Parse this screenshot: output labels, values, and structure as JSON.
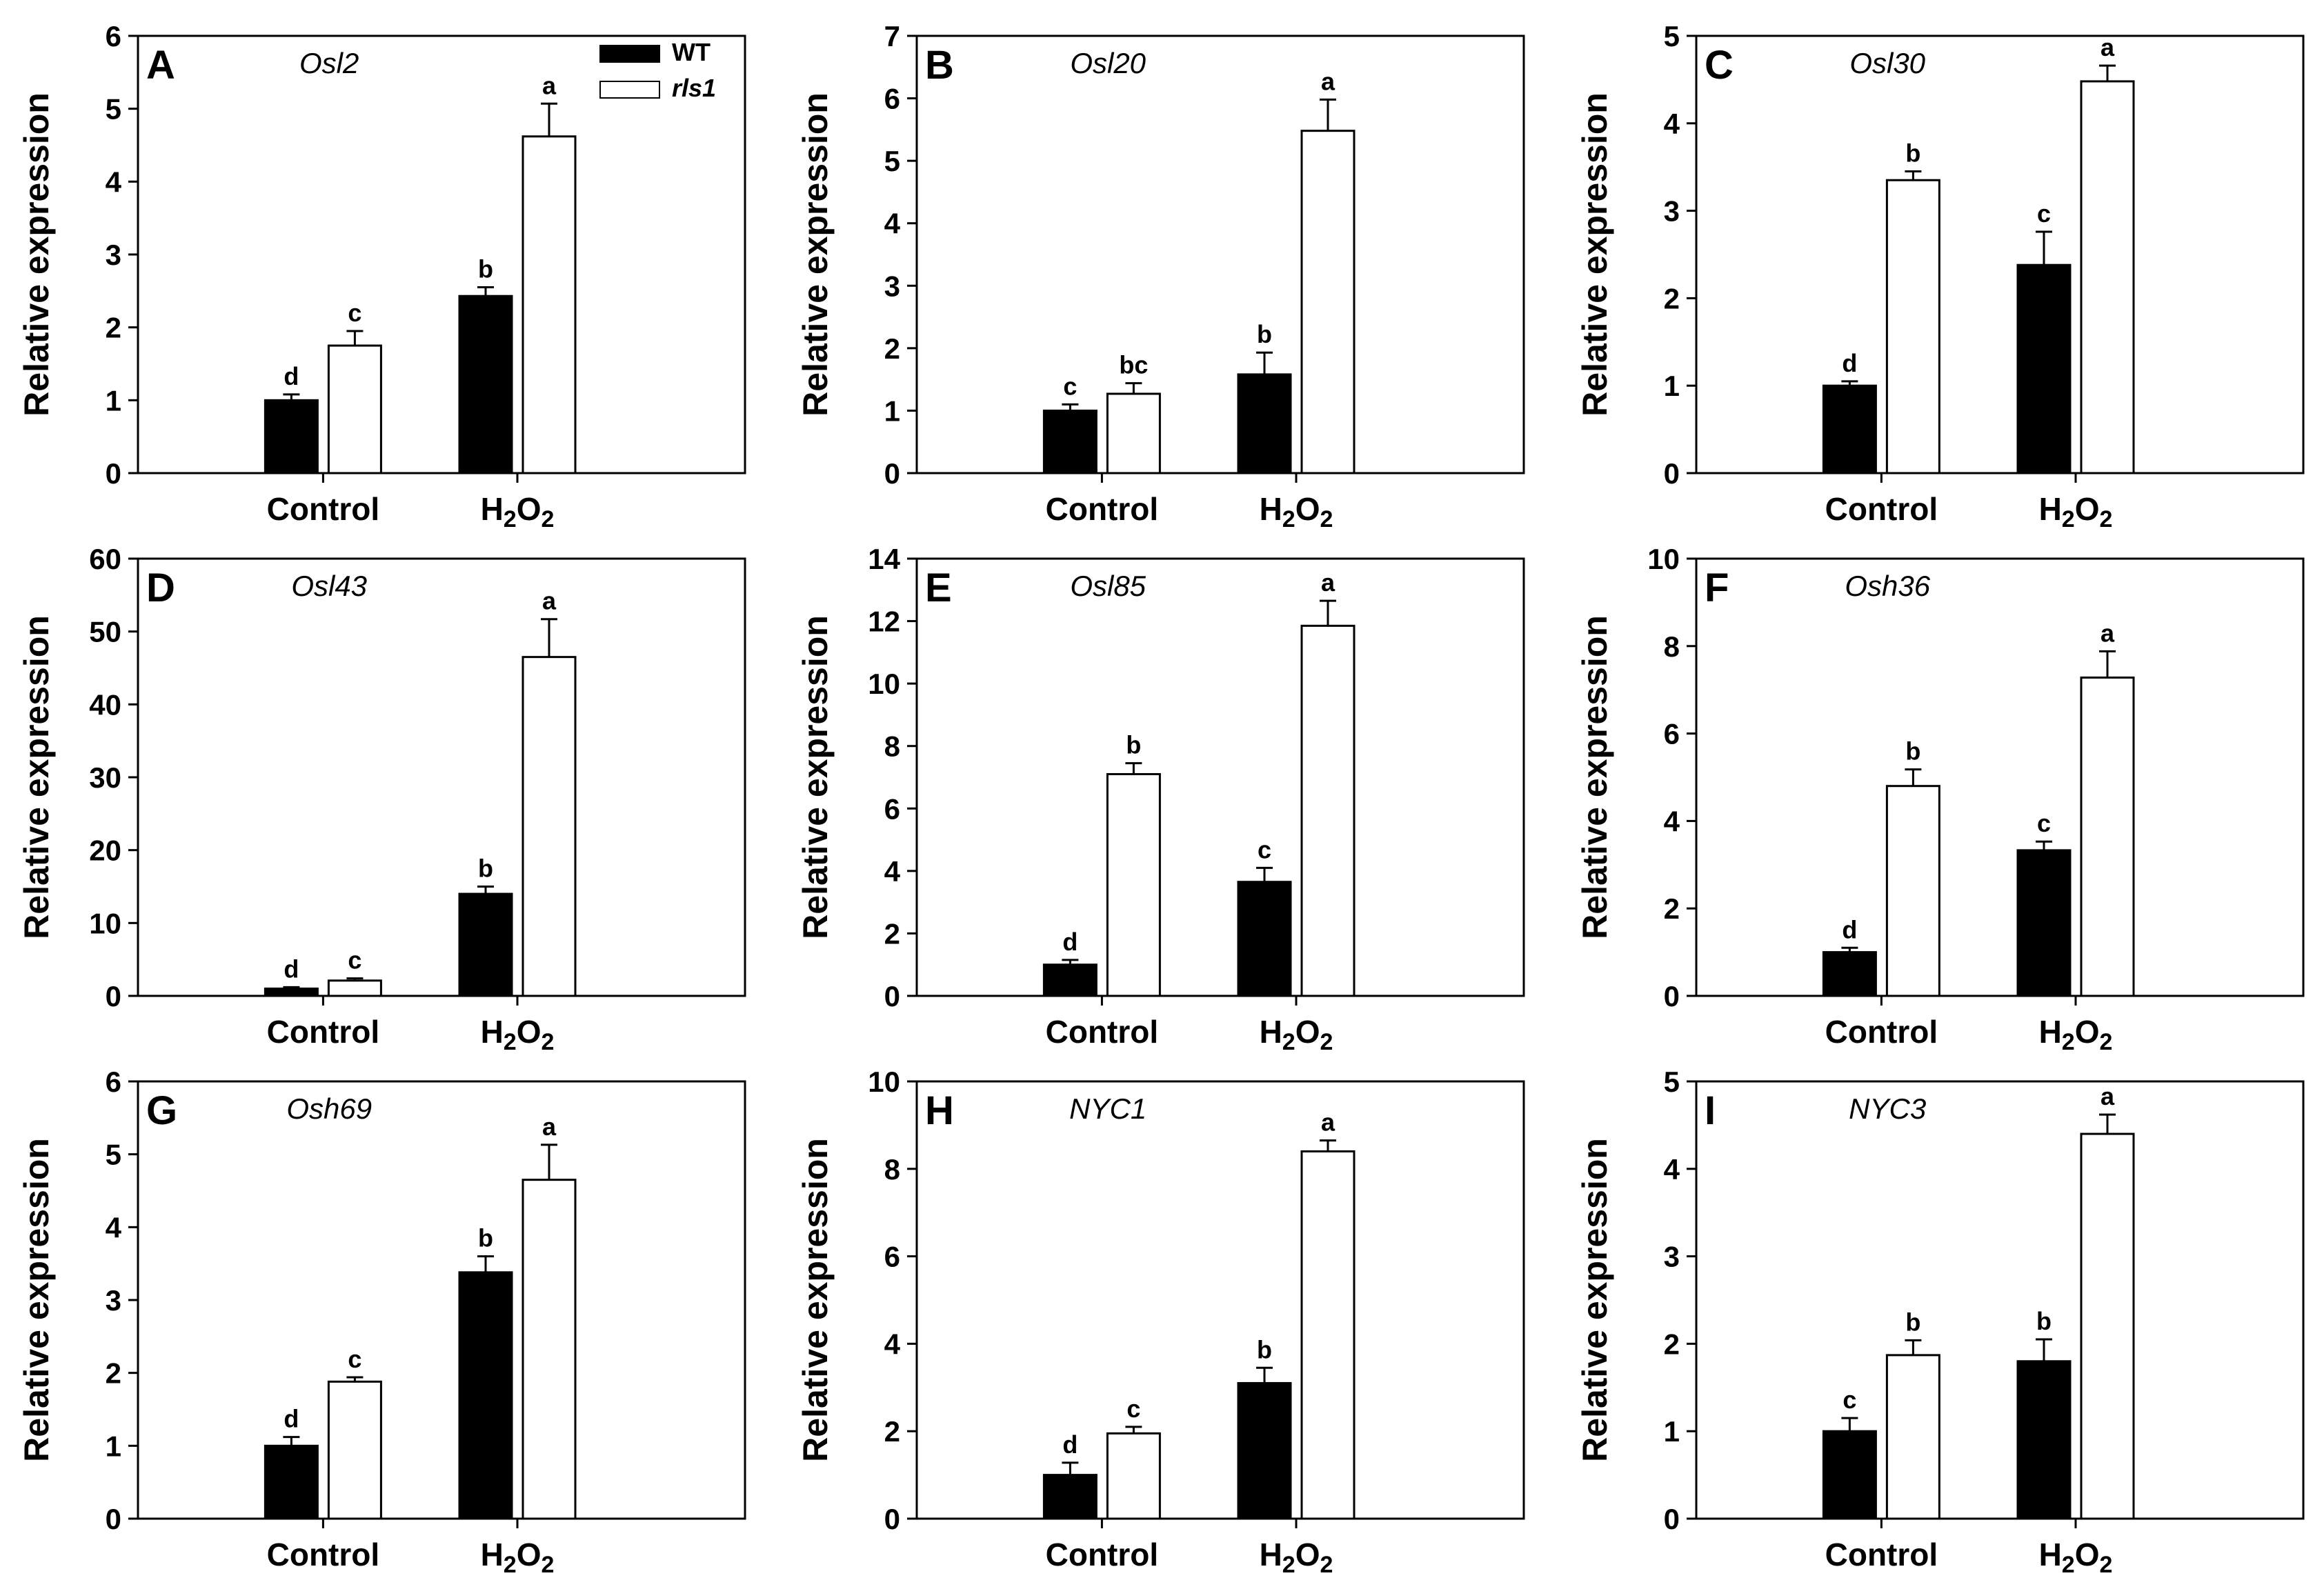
{
  "colors": {
    "wt_fill": "#000000",
    "rls1_fill": "#ffffff",
    "axis": "#000000"
  },
  "legend": {
    "wt": "WT",
    "rls1": "rls1"
  },
  "chart_data": [
    {
      "type": "bar",
      "panel": "A",
      "title": "Osl2",
      "ylabel": "Relative expression",
      "ylim": [
        0,
        6
      ],
      "yticks": [
        "0",
        "1",
        "2",
        "3",
        "4",
        "5",
        "6"
      ],
      "categories": [
        "Control",
        "H2O2"
      ],
      "series": [
        {
          "name": "WT",
          "values": [
            1.0,
            2.43
          ],
          "errors": [
            0.08,
            0.12
          ],
          "letters": [
            "d",
            "b"
          ]
        },
        {
          "name": "rls1",
          "values": [
            1.75,
            4.62
          ],
          "errors": [
            0.2,
            0.45
          ],
          "letters": [
            "c",
            "a"
          ]
        }
      ]
    },
    {
      "type": "bar",
      "panel": "B",
      "title": "Osl20",
      "ylabel": "Relative expression",
      "ylim": [
        0,
        7
      ],
      "yticks": [
        "0",
        "1",
        "2",
        "3",
        "4",
        "5",
        "6",
        "7"
      ],
      "categories": [
        "Control",
        "H2O2"
      ],
      "series": [
        {
          "name": "WT",
          "values": [
            1.0,
            1.58
          ],
          "errors": [
            0.1,
            0.35
          ],
          "letters": [
            "c",
            "b"
          ]
        },
        {
          "name": "rls1",
          "values": [
            1.27,
            5.48
          ],
          "errors": [
            0.17,
            0.5
          ],
          "letters": [
            "bc",
            "a"
          ]
        }
      ]
    },
    {
      "type": "bar",
      "panel": "C",
      "title": "Osl30",
      "ylabel": "Relative expression",
      "ylim": [
        0,
        5
      ],
      "yticks": [
        "0",
        "1",
        "2",
        "3",
        "4",
        "5"
      ],
      "categories": [
        "Control",
        "H2O2"
      ],
      "series": [
        {
          "name": "WT",
          "values": [
            1.0,
            2.38
          ],
          "errors": [
            0.05,
            0.38
          ],
          "letters": [
            "d",
            "c"
          ]
        },
        {
          "name": "rls1",
          "values": [
            3.35,
            4.48
          ],
          "errors": [
            0.1,
            0.18
          ],
          "letters": [
            "b",
            "a"
          ]
        }
      ]
    },
    {
      "type": "bar",
      "panel": "D",
      "title": "Osl43",
      "ylabel": "Relative expression",
      "ylim": [
        0,
        60
      ],
      "yticks": [
        "0",
        "10",
        "20",
        "30",
        "40",
        "50",
        "60"
      ],
      "categories": [
        "Control",
        "H2O2"
      ],
      "series": [
        {
          "name": "WT",
          "values": [
            1.0,
            14.0
          ],
          "errors": [
            0.2,
            1.0
          ],
          "letters": [
            "d",
            "b"
          ]
        },
        {
          "name": "rls1",
          "values": [
            2.1,
            46.5
          ],
          "errors": [
            0.3,
            5.2
          ],
          "letters": [
            "c",
            "a"
          ]
        }
      ]
    },
    {
      "type": "bar",
      "panel": "E",
      "title": "Osl85",
      "ylabel": "Relative expression",
      "ylim": [
        0,
        14
      ],
      "yticks": [
        "0",
        "2",
        "4",
        "6",
        "8",
        "10",
        "12",
        "14"
      ],
      "categories": [
        "Control",
        "H2O2"
      ],
      "series": [
        {
          "name": "WT",
          "values": [
            1.0,
            3.65
          ],
          "errors": [
            0.15,
            0.45
          ],
          "letters": [
            "d",
            "c"
          ]
        },
        {
          "name": "rls1",
          "values": [
            7.1,
            11.85
          ],
          "errors": [
            0.35,
            0.8
          ],
          "letters": [
            "b",
            "a"
          ]
        }
      ]
    },
    {
      "type": "bar",
      "panel": "F",
      "title": "Osh36",
      "ylabel": "Relative expression",
      "ylim": [
        0,
        10
      ],
      "yticks": [
        "0",
        "2",
        "4",
        "6",
        "8",
        "10"
      ],
      "categories": [
        "Control",
        "H2O2"
      ],
      "series": [
        {
          "name": "WT",
          "values": [
            1.0,
            3.33
          ],
          "errors": [
            0.1,
            0.2
          ],
          "letters": [
            "d",
            "c"
          ]
        },
        {
          "name": "rls1",
          "values": [
            4.8,
            7.28
          ],
          "errors": [
            0.38,
            0.6
          ],
          "letters": [
            "b",
            "a"
          ]
        }
      ]
    },
    {
      "type": "bar",
      "panel": "G",
      "title": "Osh69",
      "ylabel": "Relative expression",
      "ylim": [
        0,
        6
      ],
      "yticks": [
        "0",
        "1",
        "2",
        "3",
        "4",
        "5",
        "6"
      ],
      "categories": [
        "Control",
        "H2O2"
      ],
      "series": [
        {
          "name": "WT",
          "values": [
            1.0,
            3.38
          ],
          "errors": [
            0.12,
            0.22
          ],
          "letters": [
            "d",
            "b"
          ]
        },
        {
          "name": "rls1",
          "values": [
            1.88,
            4.65
          ],
          "errors": [
            0.06,
            0.48
          ],
          "letters": [
            "c",
            "a"
          ]
        }
      ]
    },
    {
      "type": "bar",
      "panel": "H",
      "title": "NYC1",
      "ylabel": "Relative expression",
      "ylim": [
        0,
        10
      ],
      "yticks": [
        "0",
        "2",
        "4",
        "6",
        "8",
        "10"
      ],
      "categories": [
        "Control",
        "H2O2"
      ],
      "series": [
        {
          "name": "WT",
          "values": [
            1.0,
            3.1
          ],
          "errors": [
            0.28,
            0.35
          ],
          "letters": [
            "d",
            "b"
          ]
        },
        {
          "name": "rls1",
          "values": [
            1.95,
            8.4
          ],
          "errors": [
            0.15,
            0.25
          ],
          "letters": [
            "c",
            "a"
          ]
        }
      ]
    },
    {
      "type": "bar",
      "panel": "I",
      "title": "NYC3",
      "ylabel": "Relative expression",
      "ylim": [
        0,
        5
      ],
      "yticks": [
        "0",
        "1",
        "2",
        "3",
        "4",
        "5"
      ],
      "categories": [
        "Control",
        "H2O2"
      ],
      "series": [
        {
          "name": "WT",
          "values": [
            1.0,
            1.8
          ],
          "errors": [
            0.15,
            0.25
          ],
          "letters": [
            "c",
            "b"
          ]
        },
        {
          "name": "rls1",
          "values": [
            1.87,
            4.4
          ],
          "errors": [
            0.17,
            0.22
          ],
          "letters": [
            "b",
            "a"
          ]
        }
      ]
    }
  ]
}
